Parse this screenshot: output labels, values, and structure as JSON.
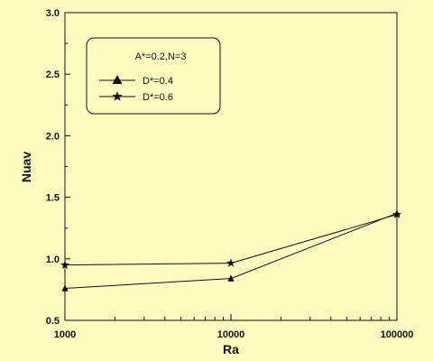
{
  "chart_data": {
    "type": "line",
    "xlabel": "Ra",
    "ylabel": "Nuav",
    "x_scale": "log",
    "xlim": [
      1000,
      100000
    ],
    "ylim": [
      0.5,
      3.0
    ],
    "x_ticks": [
      "1000",
      "10000",
      "100000"
    ],
    "y_ticks": [
      "0.5",
      "1.0",
      "1.5",
      "2.0",
      "2.5",
      "3.0"
    ],
    "grid": false,
    "legend_position": "top-left",
    "legend_title": "A*=0.2,N=3",
    "x": [
      1000,
      10000,
      100000
    ],
    "series": [
      {
        "name": "D*=0.4",
        "marker": "triangle",
        "values": [
          0.76,
          0.84,
          1.37
        ]
      },
      {
        "name": "D*=0.6",
        "marker": "star",
        "values": [
          0.95,
          0.965,
          1.36
        ]
      }
    ]
  }
}
